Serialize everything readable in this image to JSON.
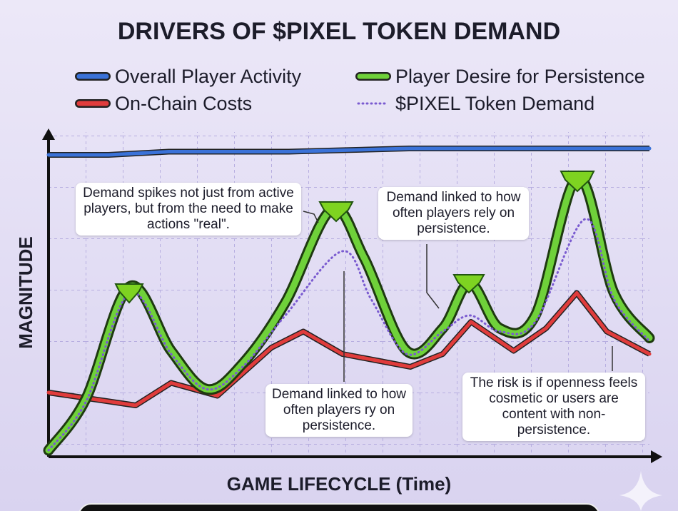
{
  "chart_data": {
    "type": "line",
    "title": "DRIVERS OF $PIXEL TOKEN DEMAND",
    "xlabel": "GAME LIFECYCLE (Time)",
    "ylabel": "MAGNITUDE",
    "xlim": [
      0,
      100
    ],
    "ylim": [
      0,
      100
    ],
    "series": [
      {
        "name": "Overall Player Activity",
        "color": "#3a72d8",
        "style": "solid",
        "x": [
          0,
          10,
          20,
          30,
          40,
          50,
          60,
          70,
          80,
          90,
          100
        ],
        "values": [
          94,
          94,
          95,
          95,
          95,
          95.5,
          96,
          96,
          96,
          96,
          96
        ]
      },
      {
        "name": "On-Chain Costs",
        "color": "#e03c3c",
        "style": "solid",
        "x": [
          0,
          14.5,
          20.4,
          28.1,
          37.1,
          42.4,
          48.9,
          60.2,
          65.6,
          70.3,
          77.4,
          82.8,
          87.9,
          92.9,
          100
        ],
        "values": [
          20,
          16,
          23,
          19,
          34,
          39,
          32,
          28,
          32,
          42,
          33,
          40,
          51,
          39,
          32
        ]
      },
      {
        "name": "Player Desire for Persistence",
        "color": "#6fd13a",
        "style": "thick",
        "x": [
          0,
          6.2,
          13.5,
          20.4,
          26.4,
          32.3,
          39.4,
          47.1,
          52.5,
          59.6,
          65.6,
          70.1,
          75.1,
          81.0,
          88.1,
          94.1,
          100
        ],
        "values": [
          2,
          18,
          53,
          33,
          21,
          29,
          48,
          77,
          62,
          33,
          40,
          54,
          40,
          44,
          87,
          51,
          37
        ]
      },
      {
        "name": "$PIXEL Token Demand",
        "color": "#7a5bd0",
        "style": "dotted",
        "x": [
          0,
          6.2,
          13.5,
          20.4,
          26.4,
          32.3,
          39.4,
          48.9,
          53.7,
          59.6,
          65.6,
          70.1,
          75.1,
          81.0,
          89.3,
          94.1,
          100
        ],
        "values": [
          2,
          17,
          51,
          32,
          21,
          28,
          44,
          64,
          49,
          32,
          39,
          44,
          39,
          42,
          74,
          49,
          36
        ]
      }
    ],
    "annotations": [
      "Demand spikes not just from active players, but from the need to make actions \"real\".",
      "Demand linked to how often players rely on persistence.",
      "Demand linked to how often players ry on persistence.",
      "The risk is if openness feels cosmetic or users are content with non-persistence."
    ]
  }
}
